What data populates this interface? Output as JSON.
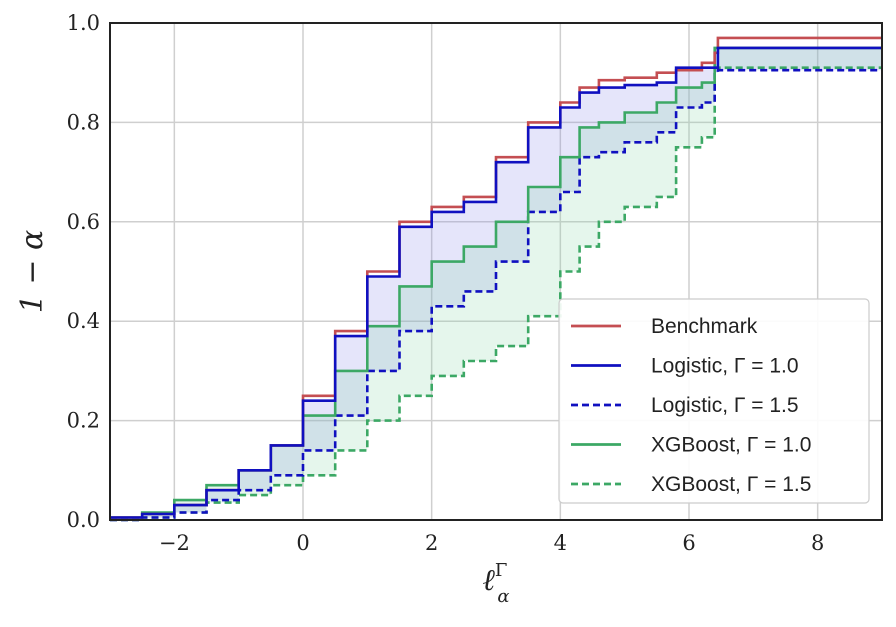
{
  "chart_data": {
    "type": "line",
    "xlabel": "ℓ",
    "xlabel_sup": "Γ",
    "xlabel_sub": "α",
    "ylabel": "1 − α",
    "xlim": [
      -3,
      9
    ],
    "ylim": [
      0,
      1
    ],
    "xticks": [
      -2,
      0,
      2,
      4,
      6,
      8
    ],
    "xtick_labels": [
      "−2",
      "0",
      "2",
      "4",
      "6",
      "8"
    ],
    "yticks": [
      0,
      0.2,
      0.4,
      0.6,
      0.8,
      1.0
    ],
    "ytick_labels": [
      "0.0",
      "0.2",
      "0.4",
      "0.6",
      "0.8",
      "1.0"
    ],
    "grid": true,
    "legend_position": "bottom-right",
    "colors": {
      "benchmark": "#c44e52",
      "logistic": "#1010c0",
      "xgboost": "#3ca865",
      "logistic_fill": "#8888e8",
      "xgboost_fill": "#88d4a8"
    },
    "series": [
      {
        "name": "Benchmark",
        "key": "benchmark",
        "style": "solid",
        "x": [
          -3.0,
          -2.5,
          -2.0,
          -1.5,
          -1.0,
          -0.5,
          0.0,
          0.5,
          1.0,
          1.5,
          2.0,
          2.5,
          3.0,
          3.5,
          4.0,
          4.3,
          4.6,
          5.0,
          5.5,
          5.8,
          6.2,
          6.4,
          6.45,
          7.0,
          8.0,
          9.0
        ],
        "y": [
          0.005,
          0.012,
          0.03,
          0.06,
          0.1,
          0.15,
          0.25,
          0.38,
          0.5,
          0.6,
          0.63,
          0.65,
          0.73,
          0.8,
          0.84,
          0.87,
          0.885,
          0.89,
          0.9,
          0.905,
          0.92,
          0.94,
          0.97,
          0.97,
          0.97,
          0.97
        ]
      },
      {
        "name": "Logistic, Γ = 1.0",
        "key": "logistic",
        "style": "solid",
        "x": [
          -3.0,
          -2.5,
          -2.0,
          -1.5,
          -1.0,
          -0.5,
          0.0,
          0.5,
          1.0,
          1.5,
          2.0,
          2.5,
          3.0,
          3.5,
          4.0,
          4.3,
          4.6,
          5.0,
          5.5,
          5.8,
          6.2,
          6.4,
          6.45,
          7.0,
          8.0,
          9.0
        ],
        "y": [
          0.005,
          0.012,
          0.03,
          0.06,
          0.1,
          0.15,
          0.24,
          0.37,
          0.49,
          0.59,
          0.62,
          0.64,
          0.72,
          0.79,
          0.83,
          0.86,
          0.87,
          0.875,
          0.88,
          0.91,
          0.91,
          0.91,
          0.95,
          0.95,
          0.95,
          0.95
        ]
      },
      {
        "name": "Logistic, Γ = 1.5",
        "key": "logistic",
        "style": "dashed",
        "x": [
          -3.0,
          -2.5,
          -2.0,
          -1.5,
          -1.0,
          -0.5,
          0.0,
          0.5,
          1.0,
          1.5,
          2.0,
          2.5,
          3.0,
          3.5,
          4.0,
          4.3,
          4.6,
          5.0,
          5.5,
          5.8,
          6.2,
          6.4,
          6.45,
          7.0,
          8.0,
          9.0
        ],
        "y": [
          0.0,
          0.005,
          0.015,
          0.04,
          0.06,
          0.09,
          0.14,
          0.21,
          0.3,
          0.38,
          0.43,
          0.46,
          0.52,
          0.62,
          0.66,
          0.73,
          0.74,
          0.76,
          0.78,
          0.83,
          0.84,
          0.9,
          0.905,
          0.905,
          0.905,
          0.905
        ]
      },
      {
        "name": "XGBoost, Γ = 1.0",
        "key": "xgboost",
        "style": "solid",
        "x": [
          -3.0,
          -2.5,
          -2.0,
          -1.5,
          -1.0,
          -0.5,
          0.0,
          0.5,
          1.0,
          1.5,
          2.0,
          2.5,
          3.0,
          3.5,
          4.0,
          4.3,
          4.6,
          5.0,
          5.5,
          5.8,
          6.2,
          6.4,
          6.45,
          7.0,
          8.0,
          9.0
        ],
        "y": [
          0.005,
          0.015,
          0.04,
          0.07,
          0.1,
          0.15,
          0.21,
          0.3,
          0.39,
          0.47,
          0.52,
          0.55,
          0.6,
          0.67,
          0.73,
          0.79,
          0.8,
          0.82,
          0.84,
          0.87,
          0.88,
          0.95,
          0.95,
          0.95,
          0.95,
          0.95
        ]
      },
      {
        "name": "XGBoost, Γ = 1.5",
        "key": "xgboost",
        "style": "dashed",
        "x": [
          -3.0,
          -2.5,
          -2.0,
          -1.5,
          -1.0,
          -0.5,
          0.0,
          0.5,
          1.0,
          1.5,
          2.0,
          2.5,
          3.0,
          3.5,
          4.0,
          4.3,
          4.6,
          5.0,
          5.5,
          5.8,
          6.2,
          6.4,
          6.45,
          7.0,
          8.0,
          9.0
        ],
        "y": [
          0.0,
          0.005,
          0.015,
          0.035,
          0.05,
          0.07,
          0.09,
          0.14,
          0.2,
          0.25,
          0.29,
          0.32,
          0.35,
          0.41,
          0.5,
          0.55,
          0.6,
          0.63,
          0.65,
          0.75,
          0.77,
          0.91,
          0.91,
          0.91,
          0.91,
          0.91
        ]
      }
    ]
  }
}
